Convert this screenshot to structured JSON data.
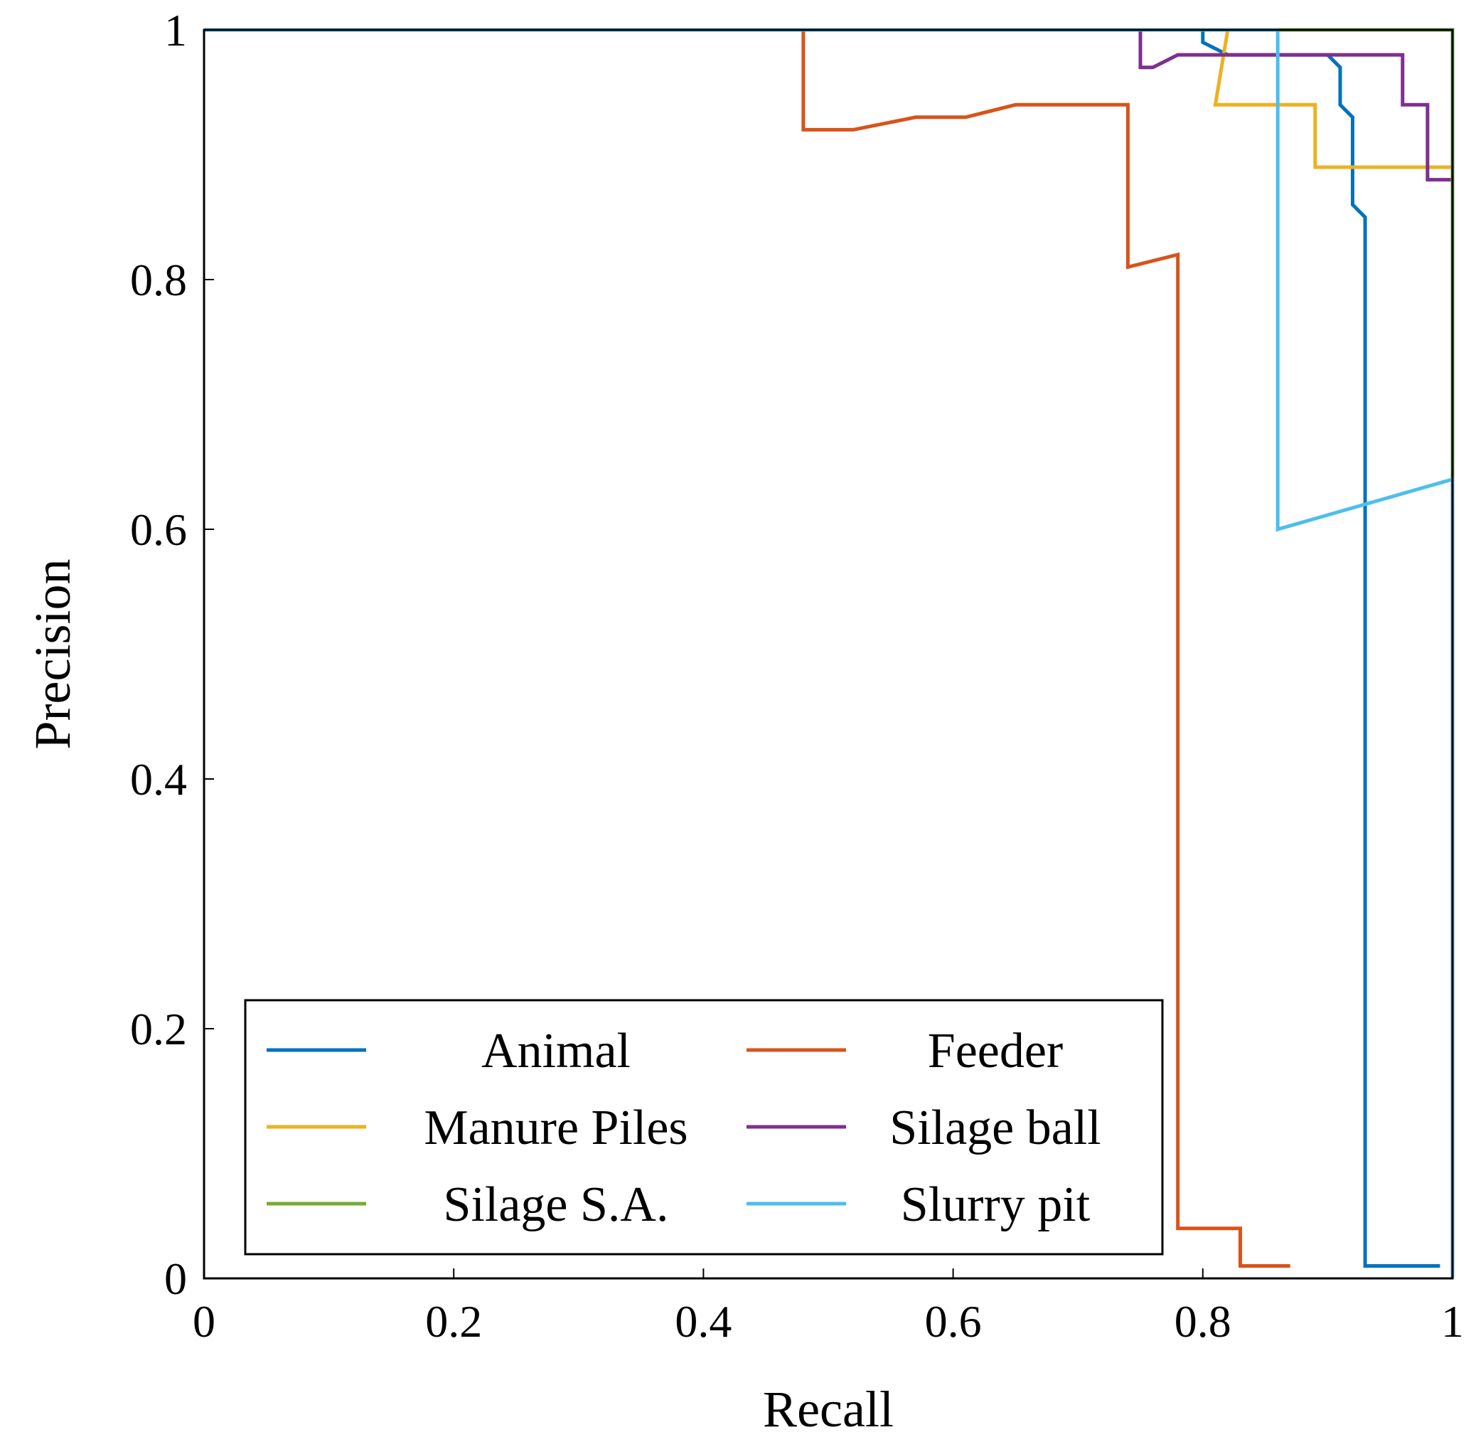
{
  "chart_data": {
    "type": "line",
    "title": "",
    "xlabel": "Recall",
    "ylabel": "Precision",
    "xlim": [
      0,
      1
    ],
    "ylim": [
      0,
      1
    ],
    "xticks": [
      0,
      0.2,
      0.4,
      0.6,
      0.8,
      1
    ],
    "xtick_labels": [
      "0",
      "0.2",
      "0.4",
      "0.6",
      "0.8",
      "1"
    ],
    "yticks": [
      0,
      0.2,
      0.4,
      0.6,
      0.8,
      1
    ],
    "ytick_labels": [
      "0",
      "0.2",
      "0.4",
      "0.6",
      "0.8",
      "1"
    ],
    "grid": false,
    "legend_position": "bottom-left",
    "legend_columns": 2,
    "series": [
      {
        "name": "Animal",
        "color": "#0072BD",
        "points": [
          [
            0,
            1
          ],
          [
            0.8,
            1
          ],
          [
            0.8,
            0.99
          ],
          [
            0.82,
            0.98
          ],
          [
            0.9,
            0.98
          ],
          [
            0.91,
            0.97
          ],
          [
            0.91,
            0.94
          ],
          [
            0.92,
            0.93
          ],
          [
            0.92,
            0.86
          ],
          [
            0.93,
            0.85
          ],
          [
            0.93,
            0.01
          ],
          [
            0.99,
            0.01
          ]
        ]
      },
      {
        "name": "Feeder",
        "color": "#D95319",
        "points": [
          [
            0,
            1
          ],
          [
            0.48,
            1
          ],
          [
            0.48,
            0.92
          ],
          [
            0.52,
            0.92
          ],
          [
            0.57,
            0.93
          ],
          [
            0.61,
            0.93
          ],
          [
            0.65,
            0.94
          ],
          [
            0.74,
            0.94
          ],
          [
            0.74,
            0.81
          ],
          [
            0.78,
            0.82
          ],
          [
            0.78,
            0.04
          ],
          [
            0.83,
            0.04
          ],
          [
            0.83,
            0.01
          ],
          [
            0.87,
            0.01
          ]
        ]
      },
      {
        "name": "Manure Piles",
        "color": "#EDB120",
        "points": [
          [
            0.01,
            1
          ],
          [
            0.02,
            1
          ],
          [
            0.81,
            1
          ],
          [
            0.82,
            1
          ],
          [
            0.81,
            0.94
          ],
          [
            0.89,
            0.94
          ],
          [
            0.89,
            0.89
          ],
          [
            1,
            0.89
          ]
        ]
      },
      {
        "name": "Silage ball",
        "color": "#7E2F8E",
        "points": [
          [
            0,
            1
          ],
          [
            0.14,
            1
          ],
          [
            0.75,
            1
          ],
          [
            0.75,
            0.97
          ],
          [
            0.76,
            0.97
          ],
          [
            0.78,
            0.98
          ],
          [
            0.96,
            0.98
          ],
          [
            0.96,
            0.94
          ],
          [
            0.98,
            0.94
          ],
          [
            0.98,
            0.88
          ],
          [
            1,
            0.88
          ]
        ]
      },
      {
        "name": "Silage S.A.",
        "color": "#77AC30",
        "points": [
          [
            0,
            1
          ],
          [
            1,
            1
          ],
          [
            1,
            0.64
          ]
        ]
      },
      {
        "name": "Slurry pit",
        "color": "#4DBEEE",
        "points": [
          [
            0,
            1
          ],
          [
            0.86,
            1
          ],
          [
            0.86,
            0.6
          ],
          [
            1,
            0.64
          ],
          [
            1,
            0
          ]
        ]
      }
    ]
  }
}
